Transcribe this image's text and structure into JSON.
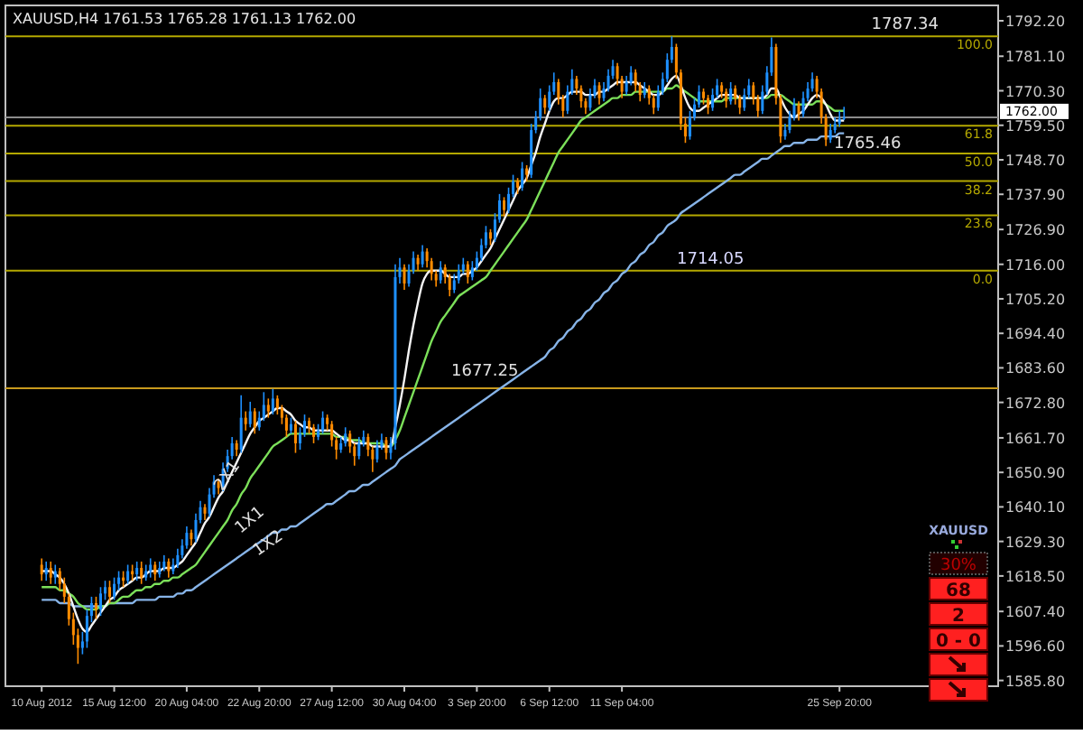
{
  "chart_data": {
    "type": "candlestick",
    "title": "XAUUSD,H4  1761.53 1765.28 1761.13 1762.00",
    "categories": [
      "10 Aug 2012",
      null,
      null,
      null,
      null,
      null,
      null,
      null,
      null,
      null,
      null,
      null,
      null,
      null,
      null,
      null,
      "15 Aug 12:00",
      null,
      null,
      null,
      null,
      null,
      null,
      null,
      null,
      null,
      null,
      null,
      null,
      null,
      null,
      null,
      "20 Aug 04:00",
      null,
      null,
      null,
      null,
      null,
      null,
      null,
      null,
      null,
      null,
      null,
      null,
      null,
      null,
      null,
      "22 Aug 20:00",
      null,
      null,
      null,
      null,
      null,
      null,
      null,
      null,
      null,
      null,
      null,
      null,
      null,
      null,
      null,
      "27 Aug 12:00",
      null,
      null,
      null,
      null,
      null,
      null,
      null,
      null,
      null,
      null,
      null,
      null,
      null,
      null,
      null,
      "30 Aug 04:00",
      null,
      null,
      null,
      null,
      null,
      null,
      null,
      null,
      null,
      null,
      null,
      null,
      null,
      null,
      null,
      "3 Sep 20:00",
      null,
      null,
      null,
      null,
      null,
      null,
      null,
      null,
      null,
      null,
      null,
      null,
      null,
      null,
      null,
      "6 Sep 12:00",
      null,
      null,
      null,
      null,
      null,
      null,
      null,
      null,
      null,
      null,
      null,
      null,
      null,
      null,
      null,
      "11 Sep 04:00",
      null,
      null,
      null,
      null,
      null,
      null,
      null,
      null,
      null,
      null,
      null,
      null,
      null,
      null,
      null,
      null,
      null,
      null,
      null,
      null,
      null,
      null,
      null,
      null,
      null,
      null,
      null,
      null,
      null,
      null,
      null,
      null,
      null,
      null,
      null,
      null,
      null,
      null,
      null,
      null,
      null,
      null,
      null,
      null,
      null,
      null,
      null,
      "25 Sep 20:00",
      null
    ],
    "ohlc": [
      [
        1622,
        1624,
        1617,
        1619
      ],
      [
        1619,
        1623,
        1617,
        1621
      ],
      [
        1621,
        1623,
        1616,
        1618
      ],
      [
        1618,
        1622,
        1616,
        1620
      ],
      [
        1620,
        1621,
        1614,
        1616
      ],
      [
        1616,
        1618,
        1610,
        1612
      ],
      [
        1612,
        1613,
        1603,
        1605
      ],
      [
        1605,
        1607,
        1597,
        1600
      ],
      [
        1600,
        1602,
        1591,
        1596
      ],
      [
        1596,
        1601,
        1594,
        1598
      ],
      [
        1598,
        1608,
        1596,
        1606
      ],
      [
        1606,
        1612,
        1604,
        1610
      ],
      [
        1610,
        1612,
        1605,
        1608
      ],
      [
        1608,
        1615,
        1606,
        1613
      ],
      [
        1613,
        1617,
        1611,
        1615
      ],
      [
        1615,
        1617,
        1610,
        1612
      ],
      [
        1612,
        1618,
        1611,
        1616
      ],
      [
        1616,
        1620,
        1614,
        1618
      ],
      [
        1618,
        1620,
        1615,
        1617
      ],
      [
        1617,
        1622,
        1616,
        1620
      ],
      [
        1620,
        1622,
        1617,
        1619
      ],
      [
        1619,
        1623,
        1617,
        1621
      ],
      [
        1621,
        1623,
        1616,
        1618
      ],
      [
        1618,
        1622,
        1617,
        1620
      ],
      [
        1620,
        1624,
        1618,
        1622
      ],
      [
        1622,
        1623,
        1617,
        1619
      ],
      [
        1619,
        1623,
        1618,
        1621
      ],
      [
        1621,
        1625,
        1620,
        1623
      ],
      [
        1623,
        1624,
        1618,
        1620
      ],
      [
        1620,
        1624,
        1619,
        1622
      ],
      [
        1622,
        1627,
        1621,
        1625
      ],
      [
        1625,
        1630,
        1624,
        1628
      ],
      [
        1628,
        1634,
        1627,
        1632
      ],
      [
        1632,
        1633,
        1628,
        1630
      ],
      [
        1630,
        1638,
        1629,
        1636
      ],
      [
        1636,
        1642,
        1635,
        1640
      ],
      [
        1640,
        1641,
        1636,
        1638
      ],
      [
        1638,
        1646,
        1637,
        1644
      ],
      [
        1644,
        1650,
        1643,
        1648
      ],
      [
        1648,
        1649,
        1644,
        1646
      ],
      [
        1646,
        1654,
        1645,
        1652
      ],
      [
        1652,
        1658,
        1651,
        1656
      ],
      [
        1656,
        1662,
        1655,
        1660
      ],
      [
        1660,
        1661,
        1656,
        1658
      ],
      [
        1658,
        1675,
        1657,
        1668
      ],
      [
        1668,
        1670,
        1664,
        1666
      ],
      [
        1666,
        1673,
        1665,
        1670
      ],
      [
        1670,
        1671,
        1663,
        1665
      ],
      [
        1665,
        1670,
        1664,
        1668
      ],
      [
        1668,
        1676,
        1667,
        1672
      ],
      [
        1672,
        1674,
        1668,
        1670
      ],
      [
        1670,
        1677,
        1669,
        1674
      ],
      [
        1674,
        1675,
        1669,
        1671
      ],
      [
        1671,
        1672,
        1666,
        1668
      ],
      [
        1668,
        1669,
        1662,
        1664
      ],
      [
        1664,
        1668,
        1663,
        1666
      ],
      [
        1666,
        1667,
        1657,
        1660
      ],
      [
        1660,
        1665,
        1658,
        1663
      ],
      [
        1663,
        1669,
        1662,
        1667
      ],
      [
        1667,
        1668,
        1663,
        1665
      ],
      [
        1665,
        1666,
        1660,
        1662
      ],
      [
        1662,
        1666,
        1661,
        1664
      ],
      [
        1664,
        1670,
        1663,
        1668
      ],
      [
        1668,
        1669,
        1664,
        1666
      ],
      [
        1666,
        1667,
        1659,
        1661
      ],
      [
        1661,
        1662,
        1655,
        1658
      ],
      [
        1658,
        1662,
        1657,
        1660
      ],
      [
        1660,
        1665,
        1659,
        1663
      ],
      [
        1663,
        1664,
        1657,
        1659
      ],
      [
        1659,
        1660,
        1653,
        1656
      ],
      [
        1656,
        1662,
        1655,
        1660
      ],
      [
        1660,
        1664,
        1659,
        1662
      ],
      [
        1662,
        1663,
        1656,
        1658
      ],
      [
        1658,
        1659,
        1651,
        1655
      ],
      [
        1655,
        1661,
        1654,
        1659
      ],
      [
        1659,
        1663,
        1658,
        1661
      ],
      [
        1661,
        1662,
        1655,
        1657
      ],
      [
        1657,
        1662,
        1655,
        1660
      ],
      [
        1660,
        1716,
        1658,
        1712
      ],
      [
        1712,
        1718,
        1710,
        1715
      ],
      [
        1715,
        1716,
        1708,
        1710
      ],
      [
        1710,
        1716,
        1709,
        1714
      ],
      [
        1714,
        1720,
        1713,
        1718
      ],
      [
        1718,
        1719,
        1714,
        1716
      ],
      [
        1716,
        1722,
        1715,
        1720
      ],
      [
        1720,
        1721,
        1715,
        1717
      ],
      [
        1717,
        1718,
        1711,
        1713
      ],
      [
        1713,
        1714,
        1709,
        1711
      ],
      [
        1711,
        1717,
        1710,
        1715
      ],
      [
        1715,
        1716,
        1710,
        1712
      ],
      [
        1712,
        1713,
        1706,
        1708
      ],
      [
        1708,
        1713,
        1707,
        1711
      ],
      [
        1711,
        1716,
        1710,
        1714
      ],
      [
        1714,
        1718,
        1713,
        1716
      ],
      [
        1716,
        1717,
        1710,
        1712
      ],
      [
        1712,
        1717,
        1711,
        1715
      ],
      [
        1715,
        1720,
        1714,
        1718
      ],
      [
        1718,
        1724,
        1717,
        1722
      ],
      [
        1722,
        1728,
        1721,
        1726
      ],
      [
        1726,
        1727,
        1722,
        1724
      ],
      [
        1724,
        1732,
        1723,
        1730
      ],
      [
        1730,
        1738,
        1729,
        1736
      ],
      [
        1736,
        1737,
        1731,
        1733
      ],
      [
        1733,
        1740,
        1732,
        1738
      ],
      [
        1738,
        1744,
        1737,
        1742
      ],
      [
        1742,
        1743,
        1738,
        1740
      ],
      [
        1740,
        1748,
        1739,
        1746
      ],
      [
        1746,
        1747,
        1742,
        1744
      ],
      [
        1744,
        1760,
        1743,
        1758
      ],
      [
        1758,
        1764,
        1757,
        1762
      ],
      [
        1762,
        1771,
        1761,
        1768
      ],
      [
        1768,
        1769,
        1763,
        1765
      ],
      [
        1765,
        1772,
        1764,
        1770
      ],
      [
        1770,
        1776,
        1769,
        1773
      ],
      [
        1773,
        1774,
        1766,
        1768
      ],
      [
        1768,
        1769,
        1762,
        1764
      ],
      [
        1764,
        1772,
        1763,
        1770
      ],
      [
        1770,
        1777,
        1769,
        1774
      ],
      [
        1774,
        1775,
        1769,
        1771
      ],
      [
        1771,
        1772,
        1765,
        1767
      ],
      [
        1767,
        1768,
        1763,
        1765
      ],
      [
        1765,
        1771,
        1764,
        1769
      ],
      [
        1769,
        1774,
        1768,
        1772
      ],
      [
        1772,
        1773,
        1766,
        1768
      ],
      [
        1768,
        1773,
        1767,
        1771
      ],
      [
        1771,
        1777,
        1770,
        1775
      ],
      [
        1775,
        1780,
        1774,
        1778
      ],
      [
        1778,
        1779,
        1772,
        1774
      ],
      [
        1774,
        1775,
        1768,
        1770
      ],
      [
        1770,
        1775,
        1769,
        1773
      ],
      [
        1773,
        1778,
        1772,
        1776
      ],
      [
        1776,
        1777,
        1770,
        1772
      ],
      [
        1772,
        1773,
        1767,
        1769
      ],
      [
        1769,
        1773,
        1768,
        1771
      ],
      [
        1771,
        1772,
        1766,
        1768
      ],
      [
        1768,
        1769,
        1763,
        1765
      ],
      [
        1765,
        1772,
        1764,
        1770
      ],
      [
        1770,
        1776,
        1769,
        1774
      ],
      [
        1774,
        1782,
        1773,
        1780
      ],
      [
        1780,
        1787.34,
        1779,
        1784
      ],
      [
        1784,
        1785,
        1774,
        1776
      ],
      [
        1776,
        1777,
        1758,
        1760
      ],
      [
        1760,
        1762,
        1754,
        1756
      ],
      [
        1756,
        1764,
        1755,
        1762
      ],
      [
        1762,
        1768,
        1761,
        1766
      ],
      [
        1766,
        1772,
        1765,
        1770
      ],
      [
        1770,
        1771,
        1766,
        1768
      ],
      [
        1768,
        1769,
        1763,
        1765
      ],
      [
        1765,
        1771,
        1764,
        1769
      ],
      [
        1769,
        1774,
        1768,
        1772
      ],
      [
        1772,
        1773,
        1768,
        1770
      ],
      [
        1770,
        1771,
        1765,
        1767
      ],
      [
        1767,
        1773,
        1766,
        1771
      ],
      [
        1771,
        1772,
        1766,
        1768
      ],
      [
        1768,
        1769,
        1763,
        1765
      ],
      [
        1765,
        1771,
        1764,
        1769
      ],
      [
        1769,
        1774,
        1768,
        1772
      ],
      [
        1772,
        1773,
        1766,
        1768
      ],
      [
        1768,
        1769,
        1762,
        1764
      ],
      [
        1764,
        1772,
        1763,
        1770
      ],
      [
        1770,
        1778,
        1769,
        1776
      ],
      [
        1776,
        1787,
        1775,
        1784
      ],
      [
        1784,
        1785,
        1766,
        1768
      ],
      [
        1768,
        1769,
        1754,
        1756
      ],
      [
        1756,
        1760,
        1755,
        1758
      ],
      [
        1758,
        1764,
        1757,
        1762
      ],
      [
        1762,
        1768,
        1761,
        1766
      ],
      [
        1766,
        1767,
        1761,
        1763
      ],
      [
        1763,
        1770,
        1762,
        1768
      ],
      [
        1768,
        1773,
        1767,
        1771
      ],
      [
        1771,
        1776,
        1770,
        1774
      ],
      [
        1774,
        1775,
        1768,
        1770
      ],
      [
        1770,
        1771,
        1760,
        1762
      ],
      [
        1762,
        1763,
        1753,
        1755
      ],
      [
        1755,
        1760,
        1754,
        1758
      ],
      [
        1758,
        1762,
        1757,
        1760
      ],
      [
        1760,
        1764,
        1759,
        1761.53
      ],
      [
        1761.53,
        1765.28,
        1761.13,
        1762
      ]
    ],
    "series": [
      {
        "type": "line",
        "color": "#87b4e8",
        "values": [
          1611,
          1611,
          1611,
          1611,
          1610,
          1610,
          1610,
          1609,
          1609,
          1609,
          1609,
          1609,
          1609,
          1609,
          1609,
          1610,
          1610,
          1610,
          1610,
          1610,
          1610,
          1611,
          1611,
          1611,
          1611,
          1611,
          1612,
          1612,
          1612,
          1612,
          1613,
          1613,
          1614,
          1614,
          1615,
          1616,
          1617,
          1618,
          1619,
          1620,
          1621,
          1622,
          1623,
          1624,
          1625,
          1626,
          1627,
          1628,
          1629,
          1630,
          1631,
          1632,
          1632,
          1633,
          1633,
          1634,
          1634,
          1635,
          1636,
          1637,
          1638,
          1639,
          1640,
          1641,
          1641,
          1642,
          1643,
          1644,
          1645,
          1645,
          1646,
          1647,
          1647,
          1648,
          1649,
          1650,
          1651,
          1652,
          1653,
          1655,
          1656,
          1657,
          1658,
          1659,
          1660,
          1661,
          1662,
          1663,
          1664,
          1665,
          1666,
          1667,
          1668,
          1669,
          1670,
          1671,
          1672,
          1673,
          1674,
          1675,
          1676,
          1677,
          1678,
          1679,
          1680,
          1681,
          1682,
          1683,
          1684,
          1685,
          1686,
          1687,
          1689,
          1690,
          1692,
          1693,
          1695,
          1696,
          1698,
          1699,
          1701,
          1702,
          1704,
          1705,
          1707,
          1708,
          1710,
          1711,
          1713,
          1714,
          1716,
          1717,
          1719,
          1720,
          1722,
          1723,
          1725,
          1726,
          1728,
          1729,
          1730,
          1732,
          1733,
          1734,
          1735,
          1736,
          1737,
          1738,
          1739,
          1740,
          1741,
          1742,
          1743,
          1744,
          1744,
          1745,
          1746,
          1747,
          1748,
          1749,
          1749,
          1750,
          1751,
          1752,
          1753,
          1753,
          1754,
          1754,
          1754,
          1755,
          1755,
          1755,
          1756,
          1756,
          1756,
          1756,
          1757,
          1757
        ]
      },
      {
        "type": "line",
        "color": "#7ce05a",
        "values": [
          1615,
          1615,
          1615,
          1615,
          1614,
          1614,
          1613,
          1612,
          1610,
          1609,
          1608,
          1608,
          1608,
          1609,
          1609,
          1610,
          1610,
          1611,
          1612,
          1612,
          1613,
          1614,
          1614,
          1615,
          1615,
          1616,
          1616,
          1617,
          1617,
          1618,
          1618,
          1619,
          1620,
          1621,
          1622,
          1624,
          1626,
          1628,
          1630,
          1632,
          1634,
          1636,
          1639,
          1641,
          1644,
          1646,
          1649,
          1651,
          1653,
          1655,
          1657,
          1659,
          1660,
          1661,
          1662,
          1663,
          1663,
          1663,
          1663,
          1663,
          1663,
          1663,
          1663,
          1663,
          1663,
          1662,
          1662,
          1662,
          1661,
          1661,
          1661,
          1660,
          1660,
          1660,
          1660,
          1660,
          1659,
          1659,
          1661,
          1664,
          1668,
          1672,
          1676,
          1680,
          1684,
          1688,
          1692,
          1695,
          1698,
          1700,
          1702,
          1704,
          1706,
          1707,
          1708,
          1709,
          1710,
          1711,
          1712,
          1714,
          1716,
          1718,
          1720,
          1722,
          1724,
          1726,
          1728,
          1730,
          1733,
          1736,
          1739,
          1742,
          1745,
          1748,
          1751,
          1753,
          1755,
          1757,
          1759,
          1761,
          1762,
          1763,
          1764,
          1765,
          1766,
          1767,
          1768,
          1768,
          1769,
          1769,
          1769,
          1770,
          1770,
          1770,
          1770,
          1770,
          1770,
          1770,
          1771,
          1771,
          1772,
          1771,
          1770,
          1769,
          1768,
          1767,
          1767,
          1767,
          1767,
          1767,
          1767,
          1768,
          1768,
          1768,
          1768,
          1768,
          1768,
          1768,
          1768,
          1768,
          1768,
          1769,
          1769,
          1769,
          1768,
          1767,
          1766,
          1766,
          1766,
          1766,
          1766,
          1767,
          1767,
          1766,
          1765,
          1764,
          1764,
          1764
        ]
      },
      {
        "type": "line",
        "color": "#f4f4f4",
        "values": [
          1620,
          1620,
          1620,
          1619,
          1618,
          1616,
          1613,
          1609,
          1605,
          1602,
          1601,
          1603,
          1605,
          1607,
          1609,
          1611,
          1612,
          1614,
          1615,
          1616,
          1617,
          1618,
          1618,
          1619,
          1620,
          1620,
          1620,
          1621,
          1621,
          1621,
          1622,
          1623,
          1625,
          1627,
          1629,
          1632,
          1635,
          1637,
          1640,
          1643,
          1645,
          1648,
          1651,
          1654,
          1657,
          1660,
          1663,
          1665,
          1667,
          1668,
          1669,
          1670,
          1671,
          1671,
          1670,
          1669,
          1667,
          1666,
          1665,
          1665,
          1664,
          1664,
          1664,
          1664,
          1664,
          1663,
          1662,
          1661,
          1661,
          1660,
          1660,
          1660,
          1660,
          1659,
          1659,
          1659,
          1659,
          1659,
          1665,
          1672,
          1680,
          1689,
          1697,
          1704,
          1710,
          1713,
          1714,
          1714,
          1714,
          1713,
          1712,
          1712,
          1712,
          1713,
          1713,
          1714,
          1715,
          1717,
          1719,
          1721,
          1724,
          1727,
          1730,
          1733,
          1736,
          1739,
          1741,
          1743,
          1747,
          1751,
          1756,
          1760,
          1764,
          1767,
          1768,
          1768,
          1769,
          1770,
          1770,
          1770,
          1769,
          1769,
          1769,
          1770,
          1770,
          1771,
          1772,
          1773,
          1773,
          1773,
          1773,
          1773,
          1772,
          1771,
          1770,
          1769,
          1769,
          1770,
          1772,
          1774,
          1775,
          1772,
          1768,
          1765,
          1764,
          1764,
          1765,
          1766,
          1767,
          1768,
          1769,
          1769,
          1769,
          1769,
          1768,
          1768,
          1768,
          1768,
          1768,
          1768,
          1769,
          1771,
          1771,
          1768,
          1765,
          1763,
          1762,
          1763,
          1764,
          1766,
          1768,
          1769,
          1768,
          1766,
          1763,
          1761,
          1761,
          1761
        ]
      }
    ],
    "ylim": [
      1584,
      1797
    ],
    "yticks": [
      {
        "value": 1792.2,
        "label": "1792.20"
      },
      {
        "value": 1781.1,
        "label": "1781.10"
      },
      {
        "value": 1770.3,
        "label": "1770.30"
      },
      {
        "value": 1759.5,
        "label": "1759.50"
      },
      {
        "value": 1748.7,
        "label": "1748.70"
      },
      {
        "value": 1737.9,
        "label": "1737.90"
      },
      {
        "value": 1726.9,
        "label": "1726.90"
      },
      {
        "value": 1716,
        "label": "1716.00"
      },
      {
        "value": 1705.2,
        "label": "1705.20"
      },
      {
        "value": 1694.4,
        "label": "1694.40"
      },
      {
        "value": 1683.6,
        "label": "1683.60"
      },
      {
        "value": 1672.8,
        "label": "1672.80"
      },
      {
        "value": 1661.7,
        "label": "1661.70"
      },
      {
        "value": 1650.9,
        "label": "1650.90"
      },
      {
        "value": 1640.1,
        "label": "1640.10"
      },
      {
        "value": 1629.3,
        "label": "1629.30"
      },
      {
        "value": 1618.5,
        "label": "1618.50"
      },
      {
        "value": 1607.4,
        "label": "1607.40"
      },
      {
        "value": 1596.6,
        "label": "1596.60"
      },
      {
        "value": 1585.8,
        "label": "1585.80"
      }
    ],
    "ref_lines": [
      {
        "axis": "y",
        "value": 1787.34,
        "color": "#b4a800"
      },
      {
        "axis": "y",
        "value": 1759.34,
        "color": "#b4a800"
      },
      {
        "axis": "y",
        "value": 1750.7,
        "color": "#b4a800"
      },
      {
        "axis": "y",
        "value": 1742.05,
        "color": "#b4a800"
      },
      {
        "axis": "y",
        "value": 1731.35,
        "color": "#b4a800"
      },
      {
        "axis": "y",
        "value": 1714.05,
        "color": "#b4a800"
      },
      {
        "axis": "y",
        "value": 1677.25,
        "label": "1677.25",
        "color": "#c89a1e"
      },
      {
        "axis": "y",
        "value": 1762,
        "label": "1762.00",
        "color": "#8c8c8c"
      }
    ],
    "annotations": [
      {
        "text": "1787.34",
        "y": 1787.34
      },
      {
        "text": "1714.05",
        "y": 1714.05
      },
      "1765.46",
      "2X1",
      "1X1",
      "1X2",
      {
        "text": "100.0",
        "y": 1787.34
      },
      {
        "text": "61.8",
        "y": 1759.34
      },
      {
        "text": "50.0",
        "y": 1750.7
      },
      {
        "text": "38.2",
        "y": 1742.05
      },
      {
        "text": "23.6",
        "y": 1731.35
      },
      {
        "text": "0.0",
        "y": 1714.05
      },
      "XAUUSD",
      "30%",
      "68",
      "2",
      "0 - 0"
    ],
    "grid": false
  }
}
